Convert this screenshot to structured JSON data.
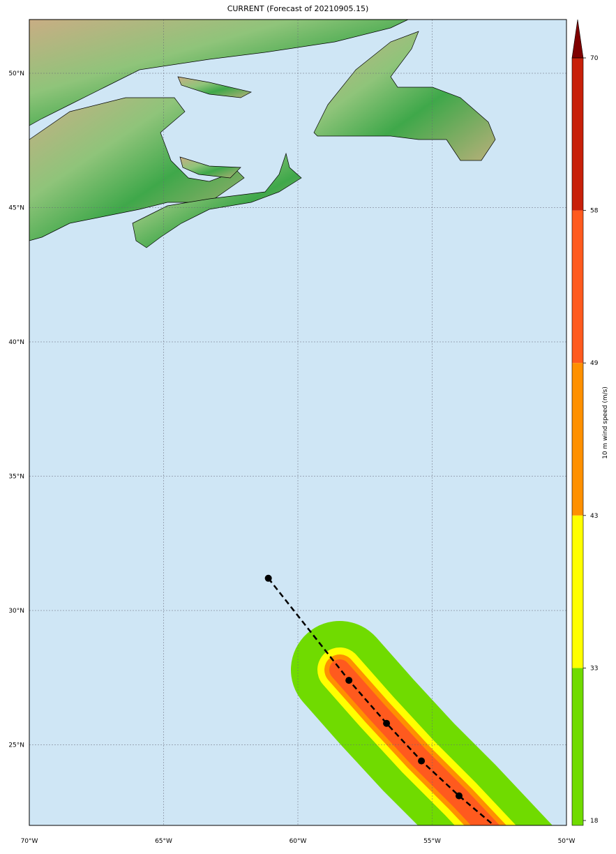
{
  "chart_data": {
    "type": "map",
    "title": "CURRENT (Forecast of 20210905.15)",
    "xlim": [
      -70,
      -50
    ],
    "ylim": [
      22,
      52
    ],
    "xticks": [
      {
        "value": -70,
        "label": "70°W"
      },
      {
        "value": -65,
        "label": "65°W"
      },
      {
        "value": -60,
        "label": "60°W"
      },
      {
        "value": -55,
        "label": "55°W"
      },
      {
        "value": -50,
        "label": "50°W"
      }
    ],
    "yticks": [
      {
        "value": 25,
        "label": "25°N"
      },
      {
        "value": 30,
        "label": "30°N"
      },
      {
        "value": 35,
        "label": "35°N"
      },
      {
        "value": 40,
        "label": "40°N"
      },
      {
        "value": 45,
        "label": "45°N"
      },
      {
        "value": 50,
        "label": "50°N"
      }
    ],
    "grid": true,
    "track": {
      "x": [
        -61.1,
        -58.1,
        -56.7,
        -55.4,
        -54.0,
        -52.7
      ],
      "y": [
        31.2,
        27.4,
        25.8,
        24.4,
        23.1,
        22.0
      ],
      "color": "#000000"
    },
    "colorbar": {
      "label": "10 m wind speed (m/s)",
      "levels": [
        18,
        33,
        43,
        49,
        58,
        70
      ],
      "colors": [
        "#70db00",
        "#ffff00",
        "#ff9000",
        "#ff5a1e",
        "#c8200a"
      ],
      "extend_color": "#7f0000"
    }
  }
}
